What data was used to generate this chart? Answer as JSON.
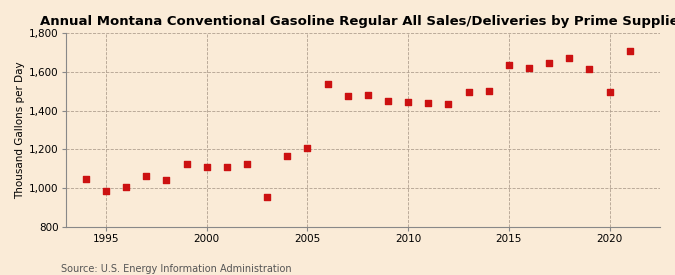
{
  "title": "Annual Montana Conventional Gasoline Regular All Sales/Deliveries by Prime Supplier",
  "ylabel": "Thousand Gallons per Day",
  "source": "Source: U.S. Energy Information Administration",
  "background_color": "#faebd7",
  "years": [
    1994,
    1995,
    1996,
    1997,
    1998,
    1999,
    2000,
    2001,
    2002,
    2003,
    2004,
    2005,
    2006,
    2007,
    2008,
    2009,
    2010,
    2011,
    2012,
    2013,
    2014,
    2015,
    2016,
    2017,
    2018,
    2019,
    2020,
    2021
  ],
  "values": [
    1048,
    985,
    1003,
    1063,
    1042,
    1125,
    1108,
    1107,
    1125,
    955,
    1165,
    1205,
    1540,
    1475,
    1480,
    1450,
    1445,
    1438,
    1435,
    1495,
    1500,
    1635,
    1620,
    1645,
    1670,
    1615,
    1495,
    1710
  ],
  "marker_color": "#cc1111",
  "marker_size": 4,
  "ylim": [
    800,
    1800
  ],
  "yticks": [
    800,
    1000,
    1200,
    1400,
    1600,
    1800
  ],
  "ytick_labels": [
    "800",
    "1,000",
    "1,200",
    "1,400",
    "1,600",
    "1,800"
  ],
  "xlim": [
    1993.0,
    2022.5
  ],
  "xticks": [
    1995,
    2000,
    2005,
    2010,
    2015,
    2020
  ],
  "title_fontsize": 9.5,
  "label_fontsize": 7.5,
  "tick_fontsize": 7.5,
  "source_fontsize": 7
}
